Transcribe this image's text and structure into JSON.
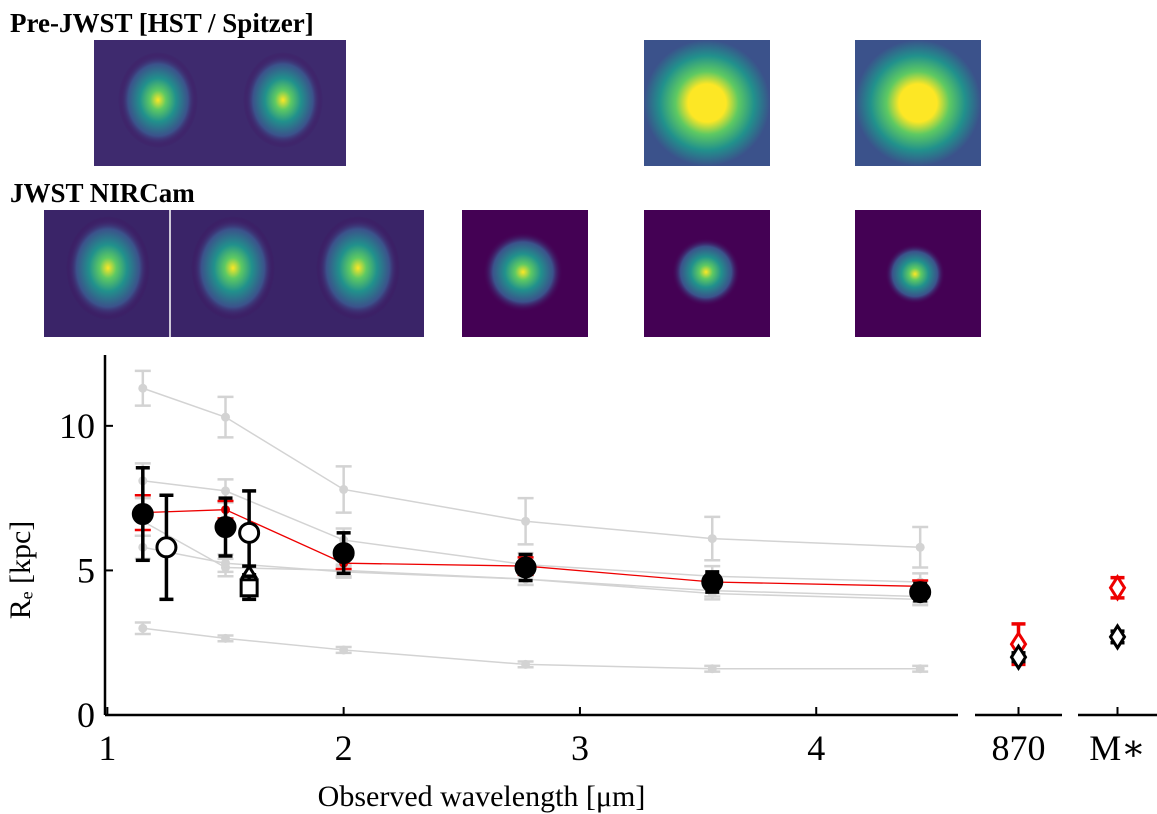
{
  "headers": {
    "pre_jwst": "Pre-JWST [HST / Spitzer]",
    "jwst": "JWST NIRCam"
  },
  "chart_data": [
    {
      "type": "errorbar",
      "xlabel": "Observed wavelength [μm]",
      "ylabel": "Rₑ [kpc]",
      "x": [
        1.15,
        1.5,
        2.0,
        2.77,
        3.56,
        4.44
      ],
      "xlim": [
        0.99,
        4.6
      ],
      "ylim": [
        0,
        12.45
      ],
      "xticks": [
        1,
        2,
        3,
        4
      ],
      "yticks": [
        0,
        5,
        10
      ],
      "series": [
        {
          "color": "#d3d3d3",
          "marker": "dot",
          "filled": true,
          "line": true,
          "values": [
            11.3,
            10.3,
            7.8,
            6.7,
            6.1,
            5.8
          ],
          "errors": [
            0.6,
            0.7,
            0.8,
            0.8,
            0.75,
            0.7
          ]
        },
        {
          "color": "#d3d3d3",
          "marker": "dot",
          "filled": true,
          "line": true,
          "values": [
            8.1,
            7.75,
            6.05,
            5.2,
            4.8,
            4.6
          ],
          "errors": [
            0.6,
            0.4,
            0.4,
            0.4,
            0.35,
            0.3
          ]
        },
        {
          "color": "#d3d3d3",
          "marker": "dot",
          "filled": true,
          "line": true,
          "values": [
            6.7,
            5.1,
            5.0,
            4.7,
            4.3,
            4.1
          ],
          "errors": [
            0.5,
            0.3,
            0.2,
            0.2,
            0.2,
            0.2
          ]
        },
        {
          "color": "#d3d3d3",
          "marker": "dot",
          "filled": true,
          "line": true,
          "values": [
            5.8,
            5.25,
            4.95,
            4.7,
            4.2,
            4.0
          ],
          "errors": [
            0.4,
            0.3,
            0.2,
            0.2,
            0.2,
            0.2
          ]
        },
        {
          "color": "#d3d3d3",
          "marker": "dot",
          "filled": true,
          "line": true,
          "values": [
            3.0,
            2.65,
            2.25,
            1.75,
            1.6,
            1.6
          ],
          "errors": [
            0.2,
            0.1,
            0.1,
            0.1,
            0.1,
            0.1
          ]
        },
        {
          "color": "#ee0000",
          "marker": "dot",
          "filled": true,
          "line": true,
          "values": [
            7.0,
            7.1,
            5.25,
            5.15,
            4.6,
            4.45
          ],
          "errors": [
            0.6,
            0.3,
            0.2,
            0.3,
            0.2,
            0.2
          ]
        },
        {
          "color": "#000000",
          "marker": "circle",
          "filled": true,
          "line": false,
          "values": [
            6.95,
            6.5,
            5.6,
            5.1,
            4.6,
            4.25
          ],
          "errors": [
            1.6,
            1.0,
            0.7,
            0.45,
            0.35,
            0.3
          ]
        },
        {
          "color": "#000000",
          "marker": "circle",
          "filled": false,
          "line": false,
          "x": [
            1.25,
            1.6
          ],
          "values": [
            5.8,
            6.3
          ],
          "errors": [
            1.8,
            1.45
          ]
        },
        {
          "color": "#000000",
          "marker": "diamond",
          "filled": false,
          "line": false,
          "x": [
            1.6
          ],
          "values": [
            4.75
          ],
          "errors": [
            0.4
          ]
        },
        {
          "color": "#000000",
          "marker": "square",
          "filled": false,
          "line": false,
          "x": [
            1.6
          ],
          "values": [
            4.4
          ],
          "errors": [
            0.4
          ]
        }
      ]
    },
    {
      "type": "errorbar",
      "categories": [
        "870"
      ],
      "ylim": [
        0,
        12.45
      ],
      "series": [
        {
          "color": "#ee0000",
          "marker": "diamond",
          "filled": false,
          "line": false,
          "values": [
            2.45
          ],
          "errors": [
            0.7
          ]
        },
        {
          "color": "#000000",
          "marker": "diamond",
          "filled": false,
          "line": false,
          "values": [
            2.0
          ],
          "errors": [
            0.15
          ]
        }
      ]
    },
    {
      "type": "errorbar",
      "categories": [
        "M∗"
      ],
      "ylim": [
        0,
        12.45
      ],
      "series": [
        {
          "color": "#ee0000",
          "marker": "diamond",
          "filled": false,
          "line": false,
          "values": [
            4.4
          ],
          "errors": [
            0.35
          ]
        },
        {
          "color": "#000000",
          "marker": "diamond",
          "filled": false,
          "line": false,
          "values": [
            2.7
          ],
          "errors": [
            0.2
          ]
        }
      ]
    }
  ]
}
